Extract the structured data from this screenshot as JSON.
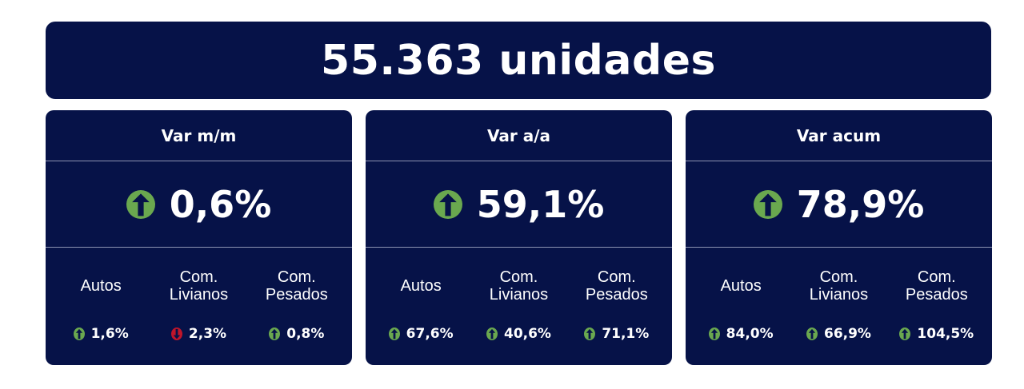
{
  "banner": {
    "title": "55.363 unidades"
  },
  "colors": {
    "background": "#061248",
    "up": "#6aa84f",
    "down": "#c0152a"
  },
  "cards": [
    {
      "title": "Var m/m",
      "main": {
        "value": "0,6%",
        "direction": "up"
      },
      "items": [
        {
          "label": "Autos",
          "value": "1,6%",
          "direction": "up"
        },
        {
          "label": "Com.\nLivianos",
          "value": "2,3%",
          "direction": "down"
        },
        {
          "label": "Com.\nPesados",
          "value": "0,8%",
          "direction": "up"
        }
      ]
    },
    {
      "title": "Var a/a",
      "main": {
        "value": "59,1%",
        "direction": "up"
      },
      "items": [
        {
          "label": "Autos",
          "value": "67,6%",
          "direction": "up"
        },
        {
          "label": "Com.\nLivianos",
          "value": "40,6%",
          "direction": "up"
        },
        {
          "label": "Com.\nPesados",
          "value": "71,1%",
          "direction": "up"
        }
      ]
    },
    {
      "title": "Var acum",
      "main": {
        "value": "78,9%",
        "direction": "up"
      },
      "items": [
        {
          "label": "Autos",
          "value": "84,0%",
          "direction": "up"
        },
        {
          "label": "Com.\nLivianos",
          "value": "66,9%",
          "direction": "up"
        },
        {
          "label": "Com.\nPesados",
          "value": "104,5%",
          "direction": "up"
        }
      ]
    }
  ]
}
